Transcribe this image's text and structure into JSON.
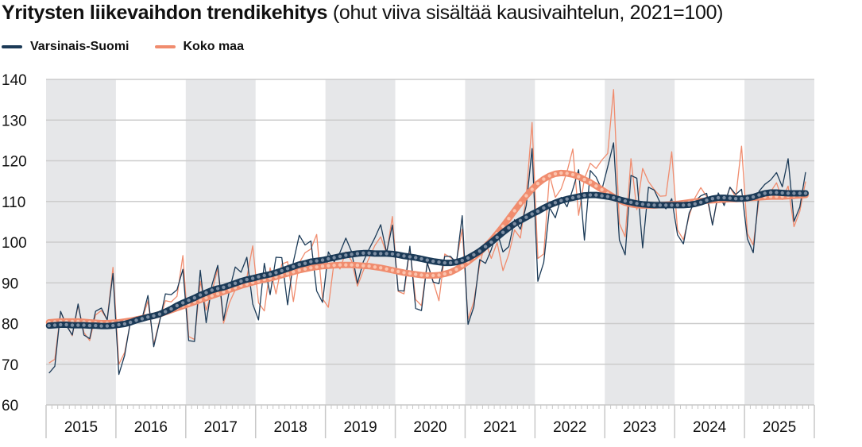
{
  "chart_data": {
    "type": "line",
    "title": "Yritysten liikevaihdon trendikehitys",
    "subtitle": "(ohut viiva sisältää kausivaihtelun, 2021=100)",
    "xlabel": "",
    "ylabel": "",
    "ylim": [
      60,
      140
    ],
    "yticks": [
      "60",
      "70",
      "80",
      "90",
      "100",
      "110",
      "120",
      "130",
      "140"
    ],
    "year_labels": [
      "2015",
      "2016",
      "2017",
      "2018",
      "2019",
      "2020",
      "2021",
      "2022",
      "2023",
      "2024",
      "2025"
    ],
    "x_start": "2015-01",
    "x_end": "2025-07",
    "grid": true,
    "shaded_years": [
      "2015",
      "2017",
      "2019",
      "2021",
      "2023",
      "2025"
    ],
    "legend_position": "top-left",
    "series": [
      {
        "name": "Varsinais-Suomi",
        "color": "#1b3a57",
        "original": [
          67.8,
          69.5,
          83,
          79.5,
          77.2,
          84.8,
          77.2,
          76.3,
          83,
          83.8,
          80.9,
          92.3,
          67.5,
          72.2,
          80.5,
          81.5,
          81.3,
          86.9,
          74.3,
          80.5,
          87.3,
          87.1,
          88.3,
          93.3,
          75.8,
          75.6,
          93.1,
          80.2,
          89.5,
          94.3,
          80.8,
          88.2,
          93.9,
          92.6,
          96.3,
          84.8,
          80.9,
          94.8,
          87.1,
          96.3,
          96.2,
          84.6,
          95.2,
          101.7,
          99.3,
          100.3,
          88,
          85.2,
          97.6,
          95.2,
          97.5,
          101,
          97.6,
          89.9,
          95.2,
          98.3,
          101.1,
          104.3,
          97.4,
          104.2,
          88.1,
          88,
          99,
          83.7,
          83.2,
          94.9,
          90.2,
          89.8,
          96.5,
          96.5,
          94.9,
          106.5,
          79.8,
          84.1,
          95.7,
          94.8,
          98.2,
          102.6,
          97.6,
          98.9,
          105.5,
          103.2,
          109,
          123,
          90.4,
          95,
          108.5,
          106,
          111,
          108.7,
          113,
          117.8,
          100.5,
          117.6,
          116,
          112.9,
          118.5,
          124.4,
          100.5,
          96.9,
          116.4,
          115.7,
          98.6,
          113.5,
          112.8,
          109.7,
          108.2,
          110.7,
          101.8,
          99.6,
          107.2,
          110.1,
          111.4,
          112,
          104.2,
          112.1,
          109,
          113.5,
          111.7,
          113,
          100.8,
          97.4,
          112.5,
          114.2,
          115.3,
          117.1,
          113.6,
          120.5,
          105.1,
          108.6,
          117.2
        ],
        "trend": [
          79.5,
          79.6,
          79.7,
          79.7,
          79.6,
          79.6,
          79.6,
          79.5,
          79.5,
          79.4,
          79.4,
          79.5,
          79.7,
          79.9,
          80.3,
          80.8,
          81.2,
          81.6,
          81.9,
          82.3,
          82.9,
          83.6,
          84.4,
          85.1,
          85.7,
          86.3,
          87,
          87.6,
          88.2,
          88.6,
          88.9,
          89.4,
          89.9,
          90.4,
          90.8,
          91.1,
          91.5,
          91.8,
          92.1,
          92.5,
          93,
          93.5,
          94,
          94.5,
          94.8,
          95.2,
          95.4,
          95.6,
          95.9,
          96.2,
          96.5,
          96.8,
          97,
          97.2,
          97.3,
          97.3,
          97.2,
          97.2,
          97.2,
          97.1,
          96.9,
          96.6,
          96.4,
          96.2,
          95.9,
          95.6,
          95.3,
          95.1,
          94.9,
          94.9,
          95.1,
          95.5,
          96.1,
          96.9,
          97.8,
          98.9,
          100,
          101.2,
          102.4,
          103.5,
          104.5,
          105.3,
          106.1,
          106.9,
          107.6,
          108.4,
          109.1,
          109.7,
          110.2,
          110.6,
          110.9,
          111.2,
          111.5,
          111.6,
          111.6,
          111.4,
          111.2,
          110.9,
          110.5,
          110.1,
          109.8,
          109.5,
          109.3,
          109.2,
          109.1,
          109.1,
          109.1,
          109.1,
          109.1,
          109.1,
          109.2,
          109.4,
          109.8,
          110.3,
          110.7,
          110.9,
          110.9,
          110.8,
          110.7,
          110.7,
          110.8,
          111.1,
          111.6,
          112,
          112.2,
          112.2,
          112.1,
          112,
          112,
          112,
          112
        ]
      },
      {
        "name": "Koko maa",
        "color": "#f08c6e",
        "original": [
          70.3,
          71.2,
          82.9,
          79.8,
          77,
          84.5,
          77.8,
          75.8,
          82.1,
          83.2,
          81,
          93.8,
          70,
          72.9,
          80.3,
          81.7,
          80.9,
          85.6,
          74.8,
          80.8,
          85.6,
          85.3,
          86.7,
          96.7,
          76.8,
          76.1,
          90.4,
          83.3,
          87.8,
          93.6,
          80.1,
          85.1,
          88.3,
          90,
          91.3,
          99.1,
          85.1,
          83.1,
          93.7,
          87.3,
          94.6,
          95.2,
          85.4,
          94.9,
          97.4,
          98.3,
          101.9,
          86.1,
          84,
          95.3,
          93.4,
          97.6,
          95.4,
          89.2,
          93,
          96.1,
          99.2,
          101.3,
          97.2,
          106.3,
          87.9,
          87.3,
          98.5,
          85.9,
          84.4,
          95,
          90.4,
          85.6,
          97.1,
          96.2,
          95.3,
          103.2,
          81,
          85.4,
          94.6,
          100,
          96,
          99.9,
          93,
          97,
          103,
          101,
          111.5,
          129.4,
          96,
          97.1,
          116.5,
          111,
          113.1,
          117.3,
          122.9,
          106.6,
          115.6,
          119.4,
          118.1,
          120.2,
          121.8,
          137.5,
          104.6,
          101.3,
          120.5,
          108,
          118.1,
          114.9,
          112.9,
          111.3,
          111.4,
          122.2,
          103,
          100.6,
          106.5,
          110.9,
          113.4,
          111.2,
          104.4,
          111.5,
          109.3,
          113.5,
          111,
          123.6,
          102.1,
          99.3,
          110.5,
          110.5,
          112.4,
          114.6,
          110.5,
          113.8,
          103.8,
          107.6,
          114.9
        ],
        "trend": [
          80.3,
          80.4,
          80.5,
          80.5,
          80.5,
          80.5,
          80.4,
          80.3,
          80.2,
          80.1,
          80.1,
          80.2,
          80.3,
          80.5,
          80.7,
          81,
          81.3,
          81.6,
          81.9,
          82.3,
          82.8,
          83.3,
          83.8,
          84.3,
          84.8,
          85.3,
          85.8,
          86.3,
          86.8,
          87.3,
          87.8,
          88.3,
          88.8,
          89.3,
          89.7,
          90.1,
          90.5,
          90.8,
          91.1,
          91.5,
          91.9,
          92.3,
          92.7,
          93.1,
          93.4,
          93.7,
          93.9,
          94.1,
          94.2,
          94.3,
          94.4,
          94.4,
          94.4,
          94.3,
          94.2,
          94.1,
          93.9,
          93.7,
          93.4,
          93.1,
          92.8,
          92.5,
          92.3,
          92.1,
          91.9,
          91.8,
          91.8,
          91.9,
          92.2,
          92.6,
          93.3,
          94.2,
          95.2,
          96.3,
          97.5,
          98.9,
          100.4,
          102.1,
          103.9,
          105.8,
          107.7,
          109.6,
          111.4,
          113,
          114.4,
          115.5,
          116.3,
          116.8,
          117,
          116.9,
          116.6,
          116.1,
          115.4,
          114.7,
          113.8,
          112.9,
          112,
          111.1,
          110.3,
          109.7,
          109.3,
          109.1,
          109,
          109,
          109,
          109.1,
          109.2,
          109.3,
          109.4,
          109.6,
          109.8,
          110,
          110.1,
          110.2,
          110.3,
          110.4,
          110.5,
          110.6,
          110.6,
          110.7,
          110.8,
          110.9,
          111,
          111.1,
          111.2,
          111.2,
          111.2,
          111.3,
          111.4,
          111.5,
          111.6
        ]
      }
    ]
  },
  "header": {
    "title_bold": "Yritysten liikevaihdon trendikehitys",
    "title_sub": "(ohut viiva sisältää kausivaihtelun, 2021=100)"
  },
  "legend": {
    "items": [
      {
        "label": "Varsinais-Suomi",
        "color": "#1b3a57"
      },
      {
        "label": "Koko maa",
        "color": "#f08c6e"
      }
    ]
  },
  "colors": {
    "shade": "#e6e7e9",
    "grid": "#cccccc",
    "trend_dot_navy": "#7d8ea3",
    "trend_dot_orange": "#fbc3ad"
  }
}
